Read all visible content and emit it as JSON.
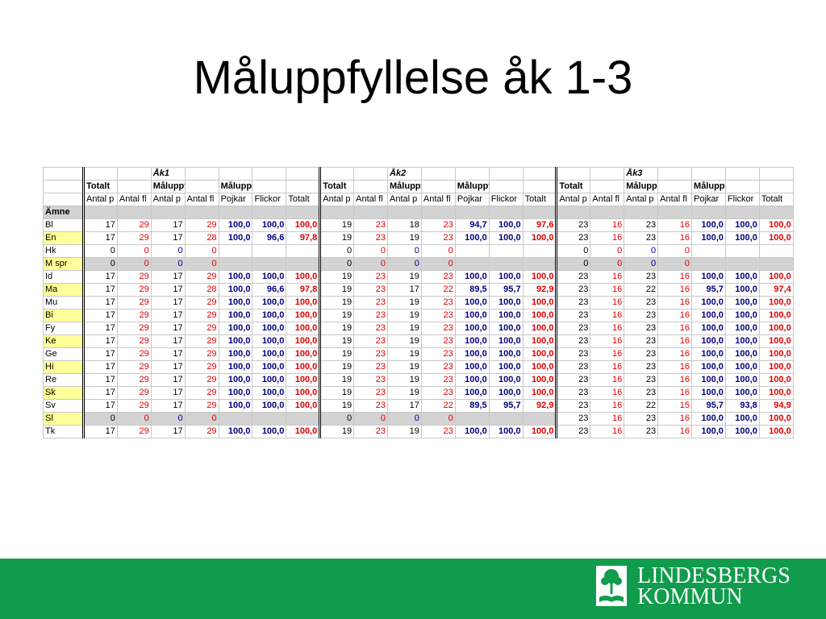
{
  "slide": {
    "title": "Måluppfyllelse åk 1-3",
    "logo": {
      "line1": "LINDESBERGS",
      "line2": "KOMMUN"
    }
  },
  "colors": {
    "footer_green": "#109c4c",
    "highlight_yellow": "#ffff99",
    "gray_row": "#d3d3d3",
    "red": "#e00000",
    "navy": "#000080",
    "blue": "#000099"
  },
  "table": {
    "grade_labels": [
      "Åk1",
      "Åk2",
      "Åk3"
    ],
    "group_row": [
      "Totalt",
      "Måluppf",
      "Måluppf %"
    ],
    "col_headers": [
      "Antal p",
      "Antal fl",
      "Antal p",
      "Antal fl",
      "Pojkar",
      "Flickor",
      "Totalt"
    ],
    "subject_header": "Ämne",
    "rows": [
      {
        "subject": "Bl",
        "hl": false,
        "gray": false,
        "vals": [
          [
            "17",
            "29",
            "17",
            "29",
            "100,0",
            "100,0",
            "100,0"
          ],
          [
            "19",
            "23",
            "18",
            "23",
            "94,7",
            "100,0",
            "97,6"
          ],
          [
            "23",
            "16",
            "23",
            "16",
            "100,0",
            "100,0",
            "100,0"
          ]
        ]
      },
      {
        "subject": "En",
        "hl": true,
        "gray": false,
        "vals": [
          [
            "17",
            "29",
            "17",
            "28",
            "100,0",
            "96,6",
            "97,8"
          ],
          [
            "19",
            "23",
            "19",
            "23",
            "100,0",
            "100,0",
            "100,0"
          ],
          [
            "23",
            "16",
            "23",
            "16",
            "100,0",
            "100,0",
            "100,0"
          ]
        ]
      },
      {
        "subject": "Hk",
        "hl": false,
        "gray": false,
        "vals": [
          [
            "0",
            "0",
            "0",
            "0",
            "",
            "",
            ""
          ],
          [
            "0",
            "0",
            "0",
            "0",
            "",
            "",
            ""
          ],
          [
            "0",
            "0",
            "0",
            "0",
            "",
            "",
            ""
          ]
        ]
      },
      {
        "subject": "M spr",
        "hl": true,
        "gray": true,
        "vals": [
          [
            "0",
            "0",
            "0",
            "0",
            "",
            "",
            ""
          ],
          [
            "0",
            "0",
            "0",
            "0",
            "",
            "",
            ""
          ],
          [
            "0",
            "0",
            "0",
            "0",
            "",
            "",
            ""
          ]
        ]
      },
      {
        "subject": "Id",
        "hl": false,
        "gray": false,
        "vals": [
          [
            "17",
            "29",
            "17",
            "29",
            "100,0",
            "100,0",
            "100,0"
          ],
          [
            "19",
            "23",
            "19",
            "23",
            "100,0",
            "100,0",
            "100,0"
          ],
          [
            "23",
            "16",
            "23",
            "16",
            "100,0",
            "100,0",
            "100,0"
          ]
        ]
      },
      {
        "subject": "Ma",
        "hl": true,
        "gray": false,
        "vals": [
          [
            "17",
            "29",
            "17",
            "28",
            "100,0",
            "96,6",
            "97,8"
          ],
          [
            "19",
            "23",
            "17",
            "22",
            "89,5",
            "95,7",
            "92,9"
          ],
          [
            "23",
            "16",
            "22",
            "16",
            "95,7",
            "100,0",
            "97,4"
          ]
        ]
      },
      {
        "subject": "Mu",
        "hl": false,
        "gray": false,
        "vals": [
          [
            "17",
            "29",
            "17",
            "29",
            "100,0",
            "100,0",
            "100,0"
          ],
          [
            "19",
            "23",
            "19",
            "23",
            "100,0",
            "100,0",
            "100,0"
          ],
          [
            "23",
            "16",
            "23",
            "16",
            "100,0",
            "100,0",
            "100,0"
          ]
        ]
      },
      {
        "subject": "Bi",
        "hl": true,
        "gray": false,
        "vals": [
          [
            "17",
            "29",
            "17",
            "29",
            "100,0",
            "100,0",
            "100,0"
          ],
          [
            "19",
            "23",
            "19",
            "23",
            "100,0",
            "100,0",
            "100,0"
          ],
          [
            "23",
            "16",
            "23",
            "16",
            "100,0",
            "100,0",
            "100,0"
          ]
        ]
      },
      {
        "subject": "Fy",
        "hl": false,
        "gray": false,
        "vals": [
          [
            "17",
            "29",
            "17",
            "29",
            "100,0",
            "100,0",
            "100,0"
          ],
          [
            "19",
            "23",
            "19",
            "23",
            "100,0",
            "100,0",
            "100,0"
          ],
          [
            "23",
            "16",
            "23",
            "16",
            "100,0",
            "100,0",
            "100,0"
          ]
        ]
      },
      {
        "subject": "Ke",
        "hl": true,
        "gray": false,
        "vals": [
          [
            "17",
            "29",
            "17",
            "29",
            "100,0",
            "100,0",
            "100,0"
          ],
          [
            "19",
            "23",
            "19",
            "23",
            "100,0",
            "100,0",
            "100,0"
          ],
          [
            "23",
            "16",
            "23",
            "16",
            "100,0",
            "100,0",
            "100,0"
          ]
        ]
      },
      {
        "subject": "Ge",
        "hl": false,
        "gray": false,
        "vals": [
          [
            "17",
            "29",
            "17",
            "29",
            "100,0",
            "100,0",
            "100,0"
          ],
          [
            "19",
            "23",
            "19",
            "23",
            "100,0",
            "100,0",
            "100,0"
          ],
          [
            "23",
            "16",
            "23",
            "16",
            "100,0",
            "100,0",
            "100,0"
          ]
        ]
      },
      {
        "subject": "Hi",
        "hl": true,
        "gray": false,
        "vals": [
          [
            "17",
            "29",
            "17",
            "29",
            "100,0",
            "100,0",
            "100,0"
          ],
          [
            "19",
            "23",
            "19",
            "23",
            "100,0",
            "100,0",
            "100,0"
          ],
          [
            "23",
            "16",
            "23",
            "16",
            "100,0",
            "100,0",
            "100,0"
          ]
        ]
      },
      {
        "subject": "Re",
        "hl": false,
        "gray": false,
        "vals": [
          [
            "17",
            "29",
            "17",
            "29",
            "100,0",
            "100,0",
            "100,0"
          ],
          [
            "19",
            "23",
            "19",
            "23",
            "100,0",
            "100,0",
            "100,0"
          ],
          [
            "23",
            "16",
            "23",
            "16",
            "100,0",
            "100,0",
            "100,0"
          ]
        ]
      },
      {
        "subject": "Sk",
        "hl": true,
        "gray": false,
        "vals": [
          [
            "17",
            "29",
            "17",
            "29",
            "100,0",
            "100,0",
            "100,0"
          ],
          [
            "19",
            "23",
            "19",
            "23",
            "100,0",
            "100,0",
            "100,0"
          ],
          [
            "23",
            "16",
            "23",
            "16",
            "100,0",
            "100,0",
            "100,0"
          ]
        ]
      },
      {
        "subject": "Sv",
        "hl": false,
        "gray": false,
        "vals": [
          [
            "17",
            "29",
            "17",
            "29",
            "100,0",
            "100,0",
            "100,0"
          ],
          [
            "19",
            "23",
            "17",
            "22",
            "89,5",
            "95,7",
            "92,9"
          ],
          [
            "23",
            "16",
            "22",
            "15",
            "95,7",
            "93,8",
            "94,9"
          ]
        ]
      },
      {
        "subject": "Sl",
        "hl": true,
        "gray": true,
        "vals": [
          [
            "0",
            "0",
            "0",
            "0",
            "",
            "",
            ""
          ],
          [
            "0",
            "0",
            "0",
            "0",
            "",
            "",
            ""
          ],
          [
            "23",
            "16",
            "23",
            "16",
            "100,0",
            "100,0",
            "100,0"
          ]
        ]
      },
      {
        "subject": "Tk",
        "hl": false,
        "gray": false,
        "vals": [
          [
            "17",
            "29",
            "17",
            "29",
            "100,0",
            "100,0",
            "100,0"
          ],
          [
            "19",
            "23",
            "19",
            "23",
            "100,0",
            "100,0",
            "100,0"
          ],
          [
            "23",
            "16",
            "23",
            "16",
            "100,0",
            "100,0",
            "100,0"
          ]
        ]
      }
    ]
  }
}
